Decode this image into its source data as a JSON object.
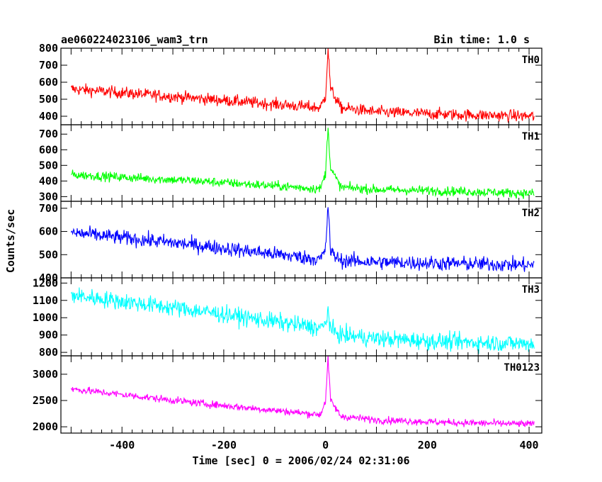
{
  "chart_data": {
    "type": "line",
    "title": "ae060224023106_wam3_trn",
    "subtitle": "Bin time: 1.0 s",
    "xlabel": "Time [sec] 0 = 2006/02/24 02:31:06",
    "ylabel": "Counts/sec",
    "xlim": [
      -520,
      425
    ],
    "x_ticks": [
      -400,
      -200,
      0,
      200,
      400
    ],
    "grid": false,
    "panels": [
      {
        "name": "TH0",
        "color": "#ff0000",
        "ylim": [
          350,
          800
        ],
        "y_ticks": [
          400,
          500,
          600,
          700,
          800
        ],
        "trend_x": [
          -500,
          -250,
          -10,
          0,
          5,
          10,
          30,
          100,
          250,
          410
        ],
        "trend_y": [
          560,
          505,
          450,
          520,
          800,
          560,
          450,
          425,
          410,
          400
        ],
        "noise": 35
      },
      {
        "name": "TH1",
        "color": "#00ff00",
        "ylim": [
          270,
          760
        ],
        "y_ticks": [
          300,
          400,
          500,
          600,
          700
        ],
        "trend_x": [
          -500,
          -250,
          -10,
          0,
          5,
          10,
          30,
          100,
          250,
          410
        ],
        "trend_y": [
          440,
          400,
          350,
          450,
          750,
          480,
          360,
          345,
          335,
          320
        ],
        "noise": 30
      },
      {
        "name": "TH2",
        "color": "#0000ff",
        "ylim": [
          400,
          730
        ],
        "y_ticks": [
          400,
          500,
          600,
          700
        ],
        "trend_x": [
          -500,
          -250,
          -10,
          0,
          5,
          10,
          30,
          100,
          250,
          410
        ],
        "trend_y": [
          595,
          540,
          480,
          520,
          720,
          510,
          475,
          468,
          462,
          455
        ],
        "noise": 32
      },
      {
        "name": "TH3",
        "color": "#00ffff",
        "ylim": [
          780,
          1230
        ],
        "y_ticks": [
          800,
          900,
          1000,
          1100,
          1200
        ],
        "trend_x": [
          -500,
          -250,
          -10,
          0,
          5,
          10,
          30,
          100,
          250,
          410
        ],
        "trend_y": [
          1130,
          1040,
          940,
          960,
          1050,
          930,
          900,
          880,
          860,
          850
        ],
        "noise": 50
      },
      {
        "name": "TH0123",
        "color": "#ff00ff",
        "ylim": [
          1880,
          3350
        ],
        "y_ticks": [
          2000,
          2500,
          3000
        ],
        "trend_x": [
          -500,
          -250,
          -10,
          0,
          5,
          10,
          30,
          100,
          250,
          410
        ],
        "trend_y": [
          2720,
          2450,
          2230,
          2500,
          3300,
          2500,
          2200,
          2130,
          2080,
          2050
        ],
        "noise": 70
      }
    ]
  }
}
